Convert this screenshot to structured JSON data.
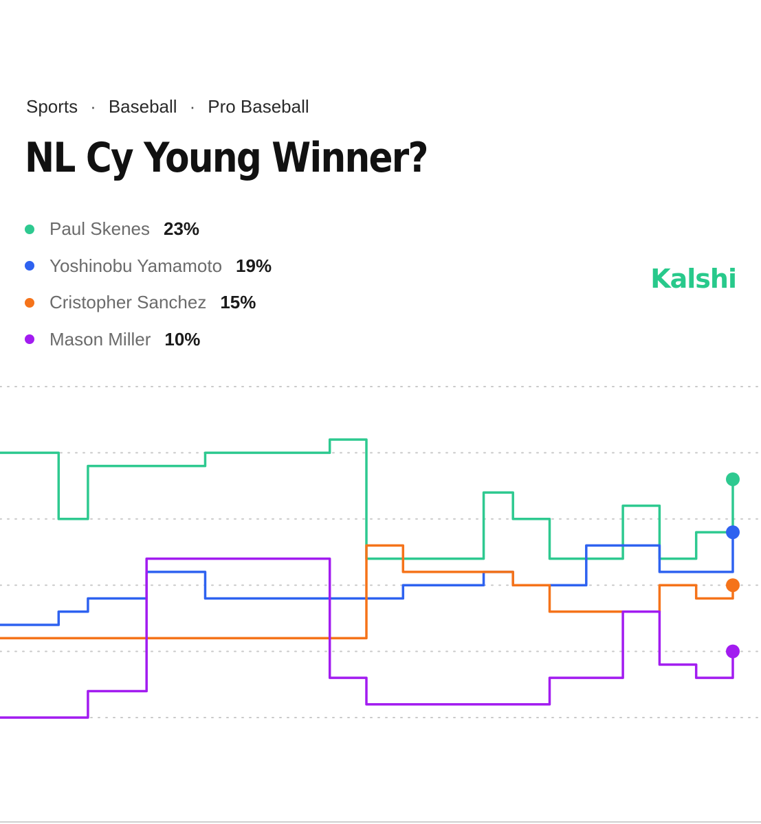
{
  "breadcrumb": {
    "items": [
      "Sports",
      "Baseball",
      "Pro Baseball"
    ],
    "separator": "·"
  },
  "title": "NL Cy Young Winner?",
  "brand": "Kalshi",
  "legend": [
    {
      "name": "Paul Skenes",
      "value": "23%",
      "color": "#2ec990"
    },
    {
      "name": "Yoshinobu Yamamoto",
      "value": "19%",
      "color": "#2e62f0"
    },
    {
      "name": "Cristopher Sanchez",
      "value": "15%",
      "color": "#f5731a"
    },
    {
      "name": "Mason Miller",
      "value": "10%",
      "color": "#a21cf0"
    }
  ],
  "chart_data": {
    "type": "line",
    "title": "",
    "xlabel": "",
    "ylabel": "",
    "x": [
      0,
      8,
      12,
      20,
      28,
      38,
      45,
      50,
      55,
      60,
      66,
      70,
      75,
      80,
      85,
      90,
      95,
      100
    ],
    "ylim": [
      5,
      30
    ],
    "grid": true,
    "legend_position": "top-left",
    "series": [
      {
        "name": "Paul Skenes",
        "color": "#2ec990",
        "values": [
          25,
          20,
          24,
          24,
          25,
          25,
          26,
          17,
          17,
          17,
          22,
          20,
          17,
          17,
          21,
          17,
          19,
          23
        ]
      },
      {
        "name": "Yoshinobu Yamamoto",
        "color": "#2e62f0",
        "values": [
          12,
          13,
          14,
          16,
          14,
          14,
          14,
          14,
          15,
          15,
          16,
          15,
          15,
          18,
          18,
          16,
          16,
          19
        ]
      },
      {
        "name": "Cristopher Sanchez",
        "color": "#f5731a",
        "values": [
          11,
          11,
          11,
          11,
          11,
          11,
          11,
          18,
          16,
          16,
          16,
          15,
          13,
          13,
          13,
          15,
          14,
          15
        ]
      },
      {
        "name": "Mason Miller",
        "color": "#a21cf0",
        "values": [
          5,
          5,
          7,
          17,
          17,
          17,
          8,
          6,
          6,
          6,
          6,
          6,
          8,
          8,
          13,
          9,
          8,
          10
        ]
      }
    ]
  }
}
